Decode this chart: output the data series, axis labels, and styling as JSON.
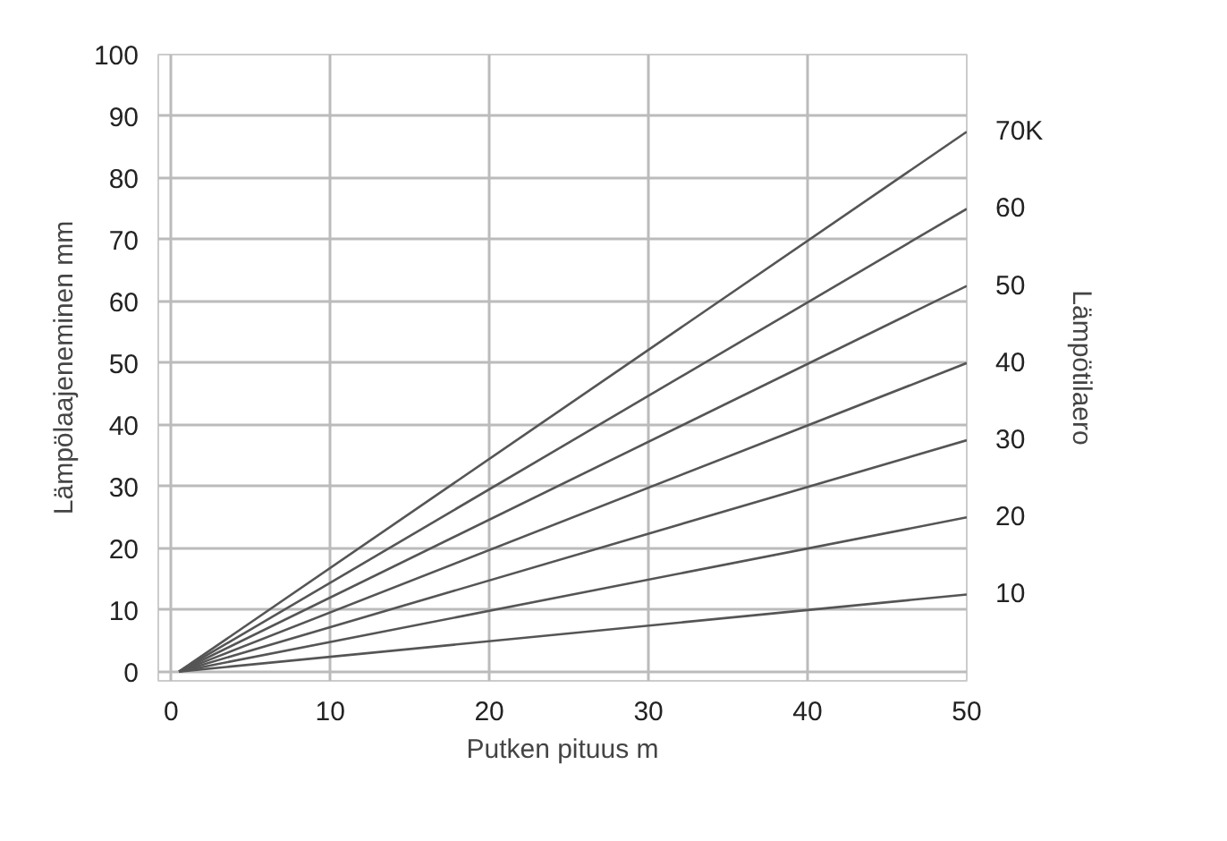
{
  "chart_data": {
    "type": "line",
    "xlabel": "Putken pituus m",
    "ylabel": "Lämpölaajeneminen mm",
    "y2label": "Lämpötilaero",
    "x": [
      0.5,
      50
    ],
    "series": [
      {
        "name": "70K",
        "color": "#555555",
        "values": [
          0,
          87.5
        ]
      },
      {
        "name": "60",
        "color": "#555555",
        "values": [
          0,
          75
        ]
      },
      {
        "name": "50",
        "color": "#555555",
        "values": [
          0,
          62.5
        ]
      },
      {
        "name": "40",
        "color": "#555555",
        "values": [
          0,
          50
        ]
      },
      {
        "name": "30",
        "color": "#555555",
        "values": [
          0,
          37.5
        ]
      },
      {
        "name": "20",
        "color": "#555555",
        "values": [
          0,
          25
        ]
      },
      {
        "name": "10",
        "color": "#555555",
        "values": [
          0,
          12.5
        ]
      }
    ],
    "xlim": [
      -0.8,
      50
    ],
    "ylim": [
      -1.5,
      100
    ],
    "xticks": [
      0,
      10,
      20,
      30,
      40,
      50
    ],
    "yticks": [
      0,
      10,
      20,
      30,
      40,
      50,
      60,
      70,
      80,
      90,
      100
    ],
    "grid": true
  }
}
